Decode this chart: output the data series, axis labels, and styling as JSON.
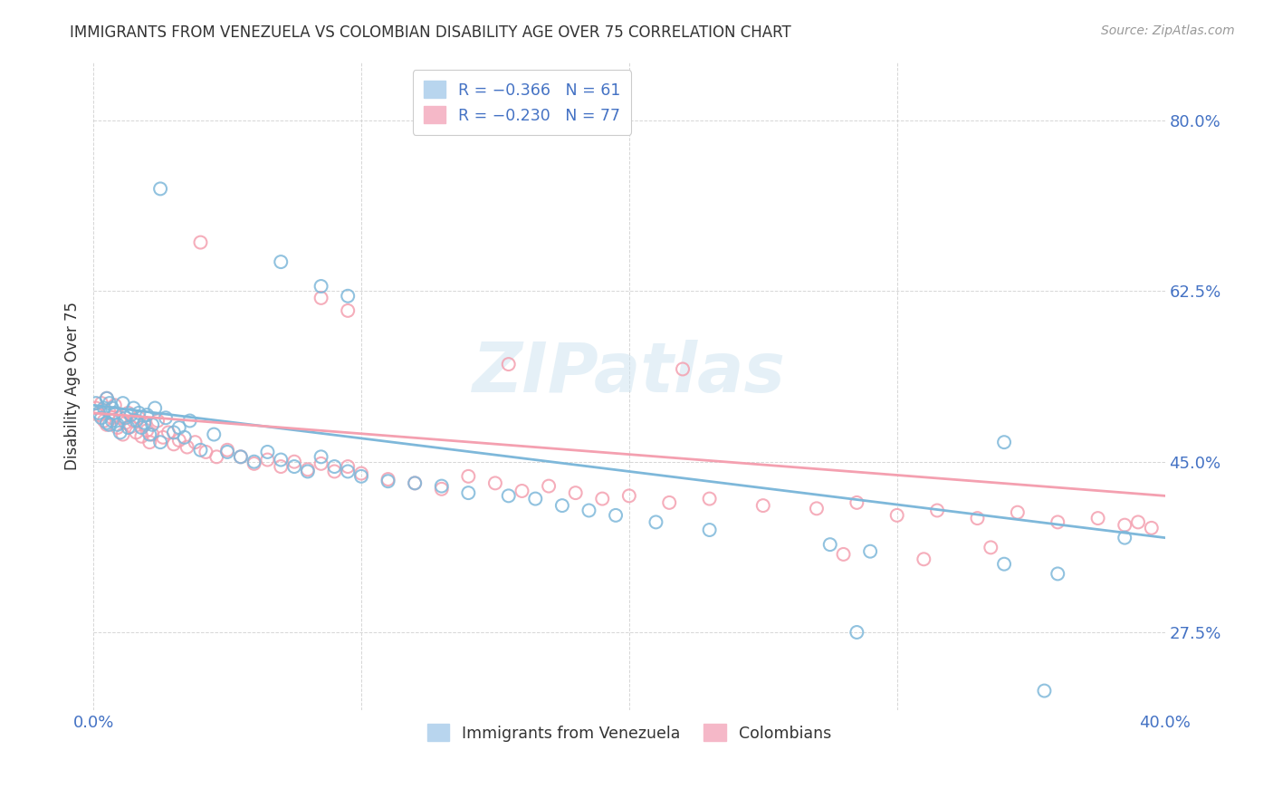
{
  "title": "IMMIGRANTS FROM VENEZUELA VS COLOMBIAN DISABILITY AGE OVER 75 CORRELATION CHART",
  "source": "Source: ZipAtlas.com",
  "ylabel": "Disability Age Over 75",
  "ytick_labels": [
    "27.5%",
    "45.0%",
    "62.5%",
    "80.0%"
  ],
  "ytick_values": [
    0.275,
    0.45,
    0.625,
    0.8
  ],
  "xlim": [
    0.0,
    0.4
  ],
  "ylim": [
    0.195,
    0.86
  ],
  "xtick_positions": [
    0.0,
    0.1,
    0.2,
    0.3,
    0.4
  ],
  "xtick_show_labels": [
    true,
    false,
    false,
    false,
    true
  ],
  "xtick_labels_shown": [
    "0.0%",
    "40.0%"
  ],
  "legend_label_bottom": [
    "Immigrants from Venezuela",
    "Colombians"
  ],
  "blue_color": "#7eb8da",
  "pink_color": "#f4a0b0",
  "blue_fill": "#cce3f2",
  "pink_fill": "#fce0e6",
  "watermark": "ZIPatlas",
  "blue_scatter_x": [
    0.001,
    0.002,
    0.003,
    0.004,
    0.005,
    0.005,
    0.006,
    0.006,
    0.007,
    0.007,
    0.008,
    0.009,
    0.01,
    0.011,
    0.012,
    0.013,
    0.014,
    0.015,
    0.016,
    0.017,
    0.018,
    0.019,
    0.02,
    0.021,
    0.022,
    0.023,
    0.025,
    0.027,
    0.03,
    0.032,
    0.034,
    0.036,
    0.04,
    0.045,
    0.05,
    0.055,
    0.06,
    0.065,
    0.07,
    0.075,
    0.08,
    0.085,
    0.09,
    0.095,
    0.1,
    0.11,
    0.12,
    0.13,
    0.14,
    0.155,
    0.165,
    0.175,
    0.185,
    0.195,
    0.21,
    0.23,
    0.275,
    0.29,
    0.34,
    0.36,
    0.385
  ],
  "blue_scatter_y": [
    0.51,
    0.5,
    0.495,
    0.505,
    0.515,
    0.49,
    0.488,
    0.51,
    0.505,
    0.492,
    0.5,
    0.488,
    0.48,
    0.51,
    0.495,
    0.485,
    0.498,
    0.505,
    0.492,
    0.5,
    0.485,
    0.49,
    0.498,
    0.478,
    0.488,
    0.505,
    0.47,
    0.495,
    0.48,
    0.485,
    0.475,
    0.492,
    0.462,
    0.478,
    0.46,
    0.455,
    0.45,
    0.46,
    0.452,
    0.445,
    0.44,
    0.455,
    0.445,
    0.44,
    0.435,
    0.43,
    0.428,
    0.425,
    0.418,
    0.415,
    0.412,
    0.405,
    0.4,
    0.395,
    0.388,
    0.38,
    0.365,
    0.358,
    0.345,
    0.335,
    0.372
  ],
  "blue_outlier_x": [
    0.025,
    0.07,
    0.085,
    0.095,
    0.285,
    0.34,
    0.355
  ],
  "blue_outlier_y": [
    0.73,
    0.655,
    0.63,
    0.62,
    0.275,
    0.47,
    0.215
  ],
  "pink_scatter_x": [
    0.001,
    0.002,
    0.003,
    0.004,
    0.005,
    0.005,
    0.006,
    0.007,
    0.008,
    0.009,
    0.01,
    0.011,
    0.012,
    0.013,
    0.014,
    0.015,
    0.016,
    0.017,
    0.018,
    0.019,
    0.02,
    0.021,
    0.022,
    0.024,
    0.026,
    0.028,
    0.03,
    0.032,
    0.035,
    0.038,
    0.042,
    0.046,
    0.05,
    0.055,
    0.06,
    0.065,
    0.07,
    0.075,
    0.08,
    0.085,
    0.09,
    0.095,
    0.1,
    0.11,
    0.12,
    0.13,
    0.14,
    0.15,
    0.16,
    0.17,
    0.18,
    0.19,
    0.2,
    0.215,
    0.23,
    0.25,
    0.27,
    0.285,
    0.3,
    0.315,
    0.33,
    0.345,
    0.36,
    0.375,
    0.385,
    0.39,
    0.395
  ],
  "pink_scatter_y": [
    0.505,
    0.498,
    0.51,
    0.492,
    0.515,
    0.488,
    0.5,
    0.495,
    0.508,
    0.485,
    0.495,
    0.478,
    0.49,
    0.5,
    0.486,
    0.492,
    0.48,
    0.495,
    0.476,
    0.488,
    0.482,
    0.47,
    0.478,
    0.492,
    0.475,
    0.48,
    0.468,
    0.472,
    0.465,
    0.47,
    0.46,
    0.455,
    0.462,
    0.455,
    0.448,
    0.452,
    0.445,
    0.45,
    0.442,
    0.448,
    0.44,
    0.445,
    0.438,
    0.432,
    0.428,
    0.422,
    0.435,
    0.428,
    0.42,
    0.425,
    0.418,
    0.412,
    0.415,
    0.408,
    0.412,
    0.405,
    0.402,
    0.408,
    0.395,
    0.4,
    0.392,
    0.398,
    0.388,
    0.392,
    0.385,
    0.388,
    0.382
  ],
  "pink_outlier_x": [
    0.04,
    0.085,
    0.095,
    0.155,
    0.22,
    0.28,
    0.31,
    0.335
  ],
  "pink_outlier_y": [
    0.675,
    0.618,
    0.605,
    0.55,
    0.545,
    0.355,
    0.35,
    0.362
  ],
  "blue_line_x": [
    0.0,
    0.4
  ],
  "blue_line_y": [
    0.508,
    0.372
  ],
  "pink_line_x": [
    0.0,
    0.4
  ],
  "pink_line_y": [
    0.5,
    0.415
  ],
  "background_color": "#ffffff",
  "grid_color": "#cccccc",
  "title_color": "#333333",
  "tick_label_color": "#4472c4",
  "marker_size": 100
}
